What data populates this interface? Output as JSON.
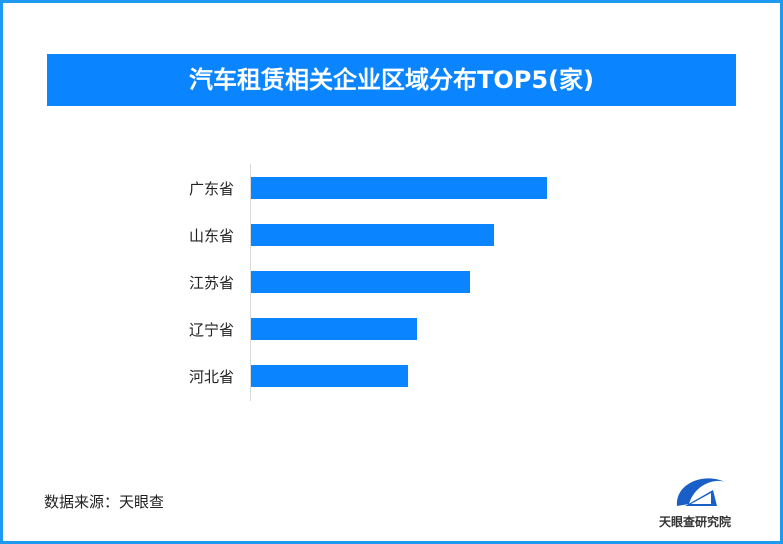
{
  "chart_data": {
    "type": "bar",
    "orientation": "horizontal",
    "title": "汽车租赁相关企业区域分布TOP5(家)",
    "categories": [
      "广东省",
      "山东省",
      "江苏省",
      "辽宁省",
      "河北省"
    ],
    "values": [
      100,
      82,
      74,
      56,
      53
    ],
    "value_note": "relative (no axis or labels shown)",
    "grid": false,
    "bar_color": "#0a84ff"
  },
  "footer": {
    "source": "数据来源：天眼查",
    "logo_text": "天眼查研究院"
  },
  "colors": {
    "border": "#1e9bf0",
    "title_bg": "#0a84ff"
  }
}
